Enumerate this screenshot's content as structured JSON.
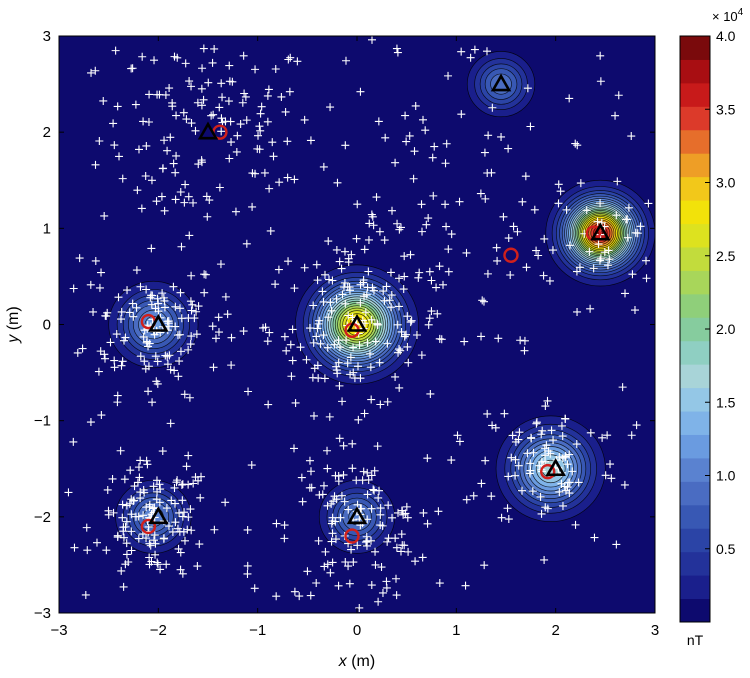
{
  "chart_data": {
    "type": "heatmap",
    "title": "",
    "xlabel": {
      "var": "x",
      "unit": " (m)"
    },
    "ylabel": {
      "var": "y",
      "unit": " (m)"
    },
    "xlim": [
      -3,
      3
    ],
    "ylim": [
      -3,
      3
    ],
    "x_ticks": [
      "−3",
      "−2",
      "−1",
      "0",
      "1",
      "2",
      "3"
    ],
    "y_ticks": [
      "−3",
      "−2",
      "−1",
      "0",
      "1",
      "2",
      "3"
    ],
    "x_tick_values": [
      -3,
      -2,
      -1,
      0,
      1,
      2,
      3
    ],
    "y_tick_values": [
      -3,
      -2,
      -1,
      0,
      1,
      2,
      3
    ],
    "grid": false,
    "colorbar": {
      "unit_label": "nT",
      "exponent_label": "× 10",
      "exponent_power": "4",
      "range": [
        0,
        4.0
      ],
      "tick_values": [
        0.5,
        1.0,
        1.5,
        2.0,
        2.5,
        3.0,
        3.5,
        4.0
      ],
      "tick_labels": [
        "0.5",
        "1.0",
        "1.5",
        "2.0",
        "2.5",
        "3.0",
        "3.5",
        "4.0"
      ],
      "levels": 25,
      "colors": [
        "#0d0a6e",
        "#1a1f8c",
        "#23329a",
        "#2b44a6",
        "#3858b4",
        "#4a6cc2",
        "#5a82d0",
        "#6a9be0",
        "#7fb3e8",
        "#94c7e6",
        "#a8d4d8",
        "#8fcfc2",
        "#86cc9e",
        "#8fcf7a",
        "#a8d65a",
        "#c2dc3c",
        "#dde21f",
        "#f2e20a",
        "#f2c81a",
        "#ee9e26",
        "#e66e2b",
        "#dc3a2a",
        "#c81a1a",
        "#a80e12",
        "#7a0a0c"
      ]
    },
    "anomaly_sources": [
      {
        "x": 0.0,
        "y": 0.0,
        "peak": 3.0,
        "sigma": 0.35,
        "spread": 0.62
      },
      {
        "x": 2.45,
        "y": 0.95,
        "peak": 3.7,
        "sigma": 0.25,
        "spread": 0.55
      },
      {
        "x": 1.95,
        "y": -1.5,
        "peak": 1.7,
        "sigma": 0.26,
        "spread": 0.55
      },
      {
        "x": -2.05,
        "y": 0.0,
        "peak": 1.2,
        "sigma": 0.24,
        "spread": 0.45
      },
      {
        "x": -2.05,
        "y": -2.0,
        "peak": 1.1,
        "sigma": 0.22,
        "spread": 0.38
      },
      {
        "x": 0.0,
        "y": -2.0,
        "peak": 1.05,
        "sigma": 0.22,
        "spread": 0.38
      },
      {
        "x": 1.45,
        "y": 2.5,
        "peak": 0.95,
        "sigma": 0.22,
        "spread": 0.34
      }
    ],
    "series": [
      {
        "type": "marker",
        "marker": "triangle",
        "points": [
          [
            -1.5,
            2.0
          ],
          [
            1.45,
            2.5
          ],
          [
            2.45,
            0.95
          ],
          [
            -2.0,
            0.0
          ],
          [
            0.0,
            0.0
          ],
          [
            2.0,
            -1.5
          ],
          [
            -2.0,
            -2.0
          ],
          [
            0.0,
            -2.0
          ]
        ]
      },
      {
        "type": "marker",
        "marker": "circle",
        "points": [
          [
            -1.38,
            2.0
          ],
          [
            1.55,
            0.72
          ],
          [
            2.38,
            0.95
          ],
          [
            -2.1,
            0.03
          ],
          [
            -0.05,
            -0.06
          ],
          [
            1.92,
            -1.53
          ],
          [
            -2.1,
            -2.1
          ],
          [
            -0.05,
            -2.2
          ]
        ]
      },
      {
        "type": "marker",
        "marker": "plus",
        "description": "measurement sample locations",
        "count_approx": 1000
      }
    ]
  }
}
